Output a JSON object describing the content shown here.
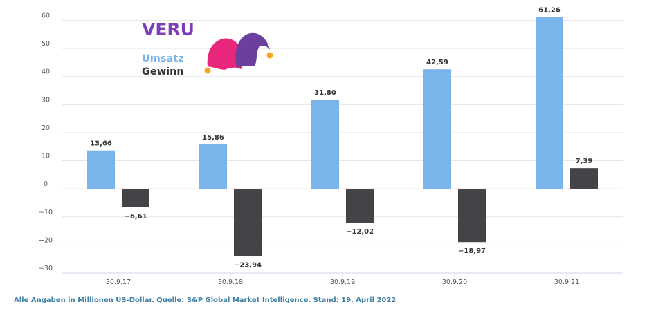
{
  "brand": {
    "name": "VERU",
    "color": "#7b3fb8"
  },
  "legend": {
    "revenue_label": "Umsatz",
    "profit_label": "Gewinn",
    "revenue_color": "#7ab4ea",
    "profit_color": "#434348",
    "revenue_text_color": "#7ab4ea",
    "profit_text_color": "#333333"
  },
  "logo": {
    "icon": "jester-hat-icon",
    "colors": [
      "#e8267b",
      "#6b3fa0",
      "#f5a623"
    ]
  },
  "footnote": {
    "text": "Alle Angaben in Millionen US-Dollar. Quelle:  S&P Global Market Intelligence. Stand: 19. April 2022",
    "color": "#3d7fa3"
  },
  "chart_data": {
    "type": "bar",
    "categories": [
      "30.9.17",
      "30.9.18",
      "30.9.19",
      "30.9.20",
      "30.9.21"
    ],
    "series": [
      {
        "name": "Umsatz",
        "values": [
          13.66,
          15.86,
          31.8,
          42.59,
          61.26
        ],
        "labels": [
          "13,66",
          "15,86",
          "31,80",
          "42,59",
          "61,26"
        ],
        "color": "#7ab4ea"
      },
      {
        "name": "Gewinn",
        "values": [
          -6.61,
          -23.94,
          -12.02,
          -18.97,
          7.39
        ],
        "labels": [
          "−6,61",
          "−23,94",
          "−12,02",
          "−18,97",
          "7,39"
        ],
        "color": "#434348"
      }
    ],
    "ylim": [
      -30,
      60
    ],
    "yticks": [
      60,
      50,
      40,
      30,
      20,
      10,
      0,
      -10,
      -20,
      -30
    ],
    "ytick_labels": [
      "60",
      "50",
      "40",
      "30",
      "20",
      "10",
      "0",
      "−10",
      "−20",
      "−30"
    ],
    "grid": true,
    "legend_position": "top-left",
    "xlabel": "",
    "ylabel": ""
  }
}
